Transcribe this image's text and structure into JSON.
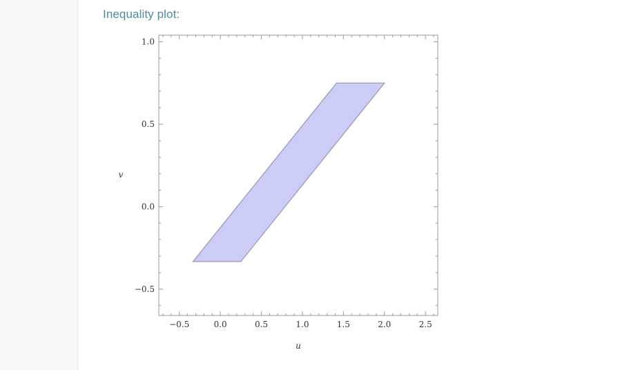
{
  "section": {
    "title": "Inequality plot:"
  },
  "chart_data": {
    "type": "area",
    "title": "",
    "xlabel": "u",
    "ylabel": "v",
    "xlim": [
      -0.75,
      2.65
    ],
    "ylim": [
      -0.66,
      1.04
    ],
    "xticks": [
      -0.5,
      0.0,
      0.5,
      1.0,
      1.5,
      2.0,
      2.5
    ],
    "xtick_labels": [
      "−0.5",
      "0.0",
      "0.5",
      "1.0",
      "1.5",
      "2.0",
      "2.5"
    ],
    "yticks": [
      -0.5,
      0.0,
      0.5,
      1.0
    ],
    "ytick_labels": [
      "−0.5",
      "0.0",
      "0.5",
      "1.0"
    ],
    "region": {
      "vertices": [
        {
          "u": -0.333,
          "v": -0.333
        },
        {
          "u": 0.25,
          "v": -0.333
        },
        {
          "u": 2.0,
          "v": 0.75
        },
        {
          "u": 1.417,
          "v": 0.75
        }
      ],
      "fill": "#cccdf6",
      "stroke": "#9a9ab8"
    },
    "grid": false,
    "frame_color": "#9a9a9a"
  }
}
